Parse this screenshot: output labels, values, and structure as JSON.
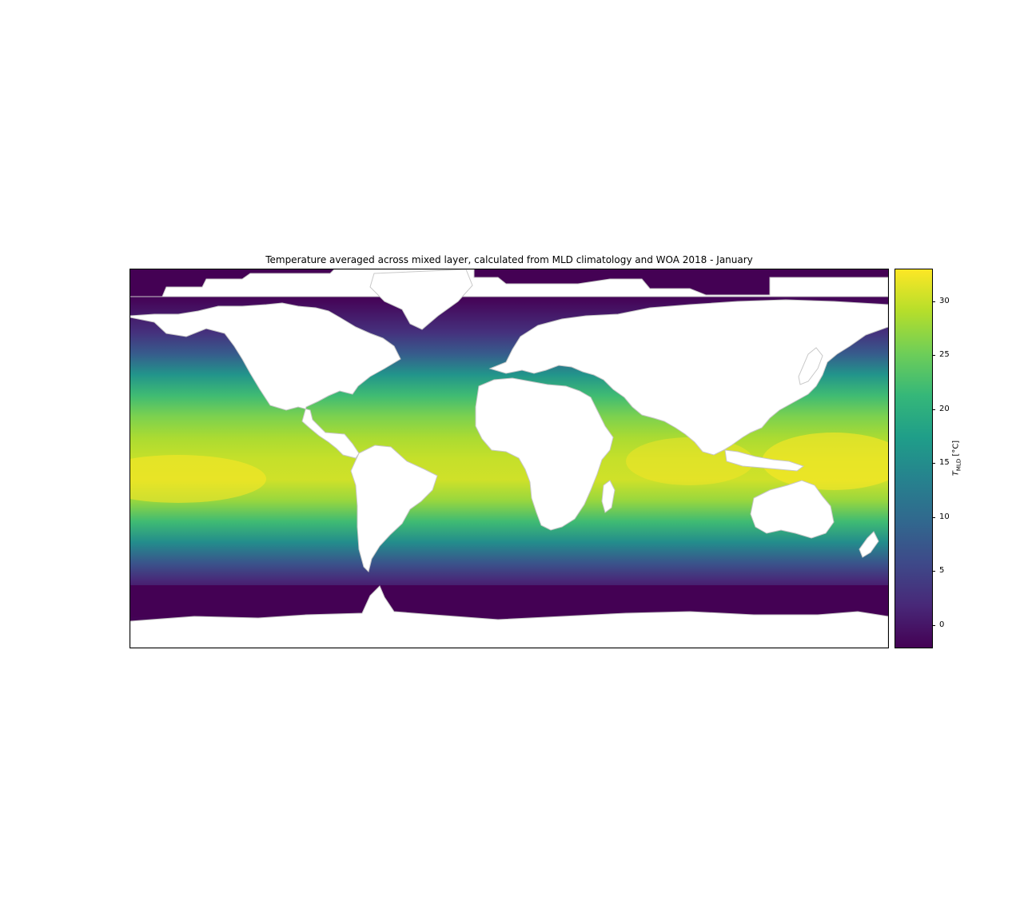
{
  "title": "Temperature averaged across mixed layer, calculated from MLD climatology and WOA 2018 - January",
  "colorbar": {
    "label_symbol": "T",
    "label_subscript": "MLD",
    "label_unit": " [°C]",
    "range": [
      -2,
      33
    ],
    "ticks": [
      "0",
      "5",
      "10",
      "15",
      "20",
      "25",
      "30"
    ],
    "colormap": [
      "#440154",
      "#482878",
      "#3e4989",
      "#31688e",
      "#26828e",
      "#1f9e89",
      "#35b779",
      "#6ece58",
      "#b5de2b",
      "#fde725"
    ]
  },
  "map": {
    "projection": "equirectangular",
    "extent": {
      "lon": [
        -180,
        180
      ],
      "lat": [
        -90,
        90
      ]
    },
    "land_color": "#ffffff",
    "coastline_color": "#c8c8c8",
    "sea_ice_color": "#440154",
    "temperature_profile_by_latitude": [
      [
        90,
        -1.8
      ],
      [
        75,
        -1.5
      ],
      [
        60,
        3
      ],
      [
        50,
        8
      ],
      [
        40,
        16
      ],
      [
        30,
        22
      ],
      [
        20,
        26
      ],
      [
        10,
        28.5
      ],
      [
        0,
        30
      ],
      [
        -10,
        30.5
      ],
      [
        -20,
        27.5
      ],
      [
        -30,
        22
      ],
      [
        -40,
        15
      ],
      [
        -50,
        7
      ],
      [
        -58,
        2
      ],
      [
        -65,
        -1
      ],
      [
        -75,
        -1.8
      ],
      [
        -90,
        -1.8
      ]
    ]
  },
  "chart_data": {
    "type": "heatmap",
    "title": "Temperature averaged across mixed layer, calculated from MLD climatology and WOA 2018 - January",
    "colorbar_label": "T_MLD [°C]",
    "value_range": [
      -2,
      33
    ],
    "colorbar_ticks": [
      0,
      5,
      10,
      15,
      20,
      25,
      30
    ]
  }
}
